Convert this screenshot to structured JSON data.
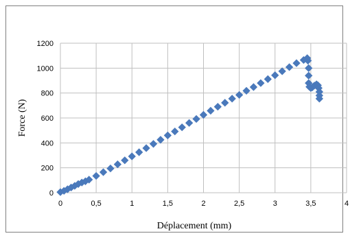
{
  "chart_data": {
    "type": "scatter",
    "xlabel": "Déplacement (mm)",
    "ylabel": "Force (N)",
    "xlim": [
      0,
      4
    ],
    "ylim": [
      0,
      1200
    ],
    "xticks": [
      "0",
      "0,5",
      "1",
      "1,5",
      "2",
      "2,5",
      "3",
      "3,5",
      "4"
    ],
    "yticks": [
      "0",
      "200",
      "400",
      "600",
      "800",
      "1000",
      "1200"
    ],
    "grid": true,
    "legend": "none",
    "marker_color": "#4a79bb",
    "series": [
      {
        "points": [
          [
            0.0,
            5
          ],
          [
            0.05,
            15
          ],
          [
            0.1,
            28
          ],
          [
            0.15,
            42
          ],
          [
            0.2,
            55
          ],
          [
            0.25,
            70
          ],
          [
            0.3,
            82
          ],
          [
            0.35,
            92
          ],
          [
            0.4,
            105
          ],
          [
            0.5,
            135
          ],
          [
            0.6,
            165
          ],
          [
            0.7,
            195
          ],
          [
            0.8,
            228
          ],
          [
            0.9,
            260
          ],
          [
            1.0,
            292
          ],
          [
            1.1,
            325
          ],
          [
            1.2,
            358
          ],
          [
            1.3,
            392
          ],
          [
            1.4,
            425
          ],
          [
            1.5,
            460
          ],
          [
            1.6,
            492
          ],
          [
            1.7,
            525
          ],
          [
            1.8,
            560
          ],
          [
            1.9,
            592
          ],
          [
            2.0,
            625
          ],
          [
            2.1,
            658
          ],
          [
            2.2,
            690
          ],
          [
            2.3,
            722
          ],
          [
            2.4,
            755
          ],
          [
            2.5,
            785
          ],
          [
            2.6,
            818
          ],
          [
            2.7,
            848
          ],
          [
            2.8,
            880
          ],
          [
            2.9,
            912
          ],
          [
            3.0,
            943
          ],
          [
            3.1,
            975
          ],
          [
            3.2,
            1008
          ],
          [
            3.3,
            1040
          ],
          [
            3.4,
            1065
          ],
          [
            3.45,
            1080
          ],
          [
            3.46,
            1060
          ],
          [
            3.47,
            1000
          ],
          [
            3.47,
            940
          ],
          [
            3.47,
            880
          ],
          [
            3.48,
            850
          ],
          [
            3.5,
            840
          ],
          [
            3.52,
            845
          ],
          [
            3.55,
            860
          ],
          [
            3.58,
            870
          ],
          [
            3.6,
            862
          ],
          [
            3.61,
            840
          ],
          [
            3.62,
            810
          ],
          [
            3.62,
            780
          ],
          [
            3.62,
            755
          ]
        ]
      }
    ]
  }
}
